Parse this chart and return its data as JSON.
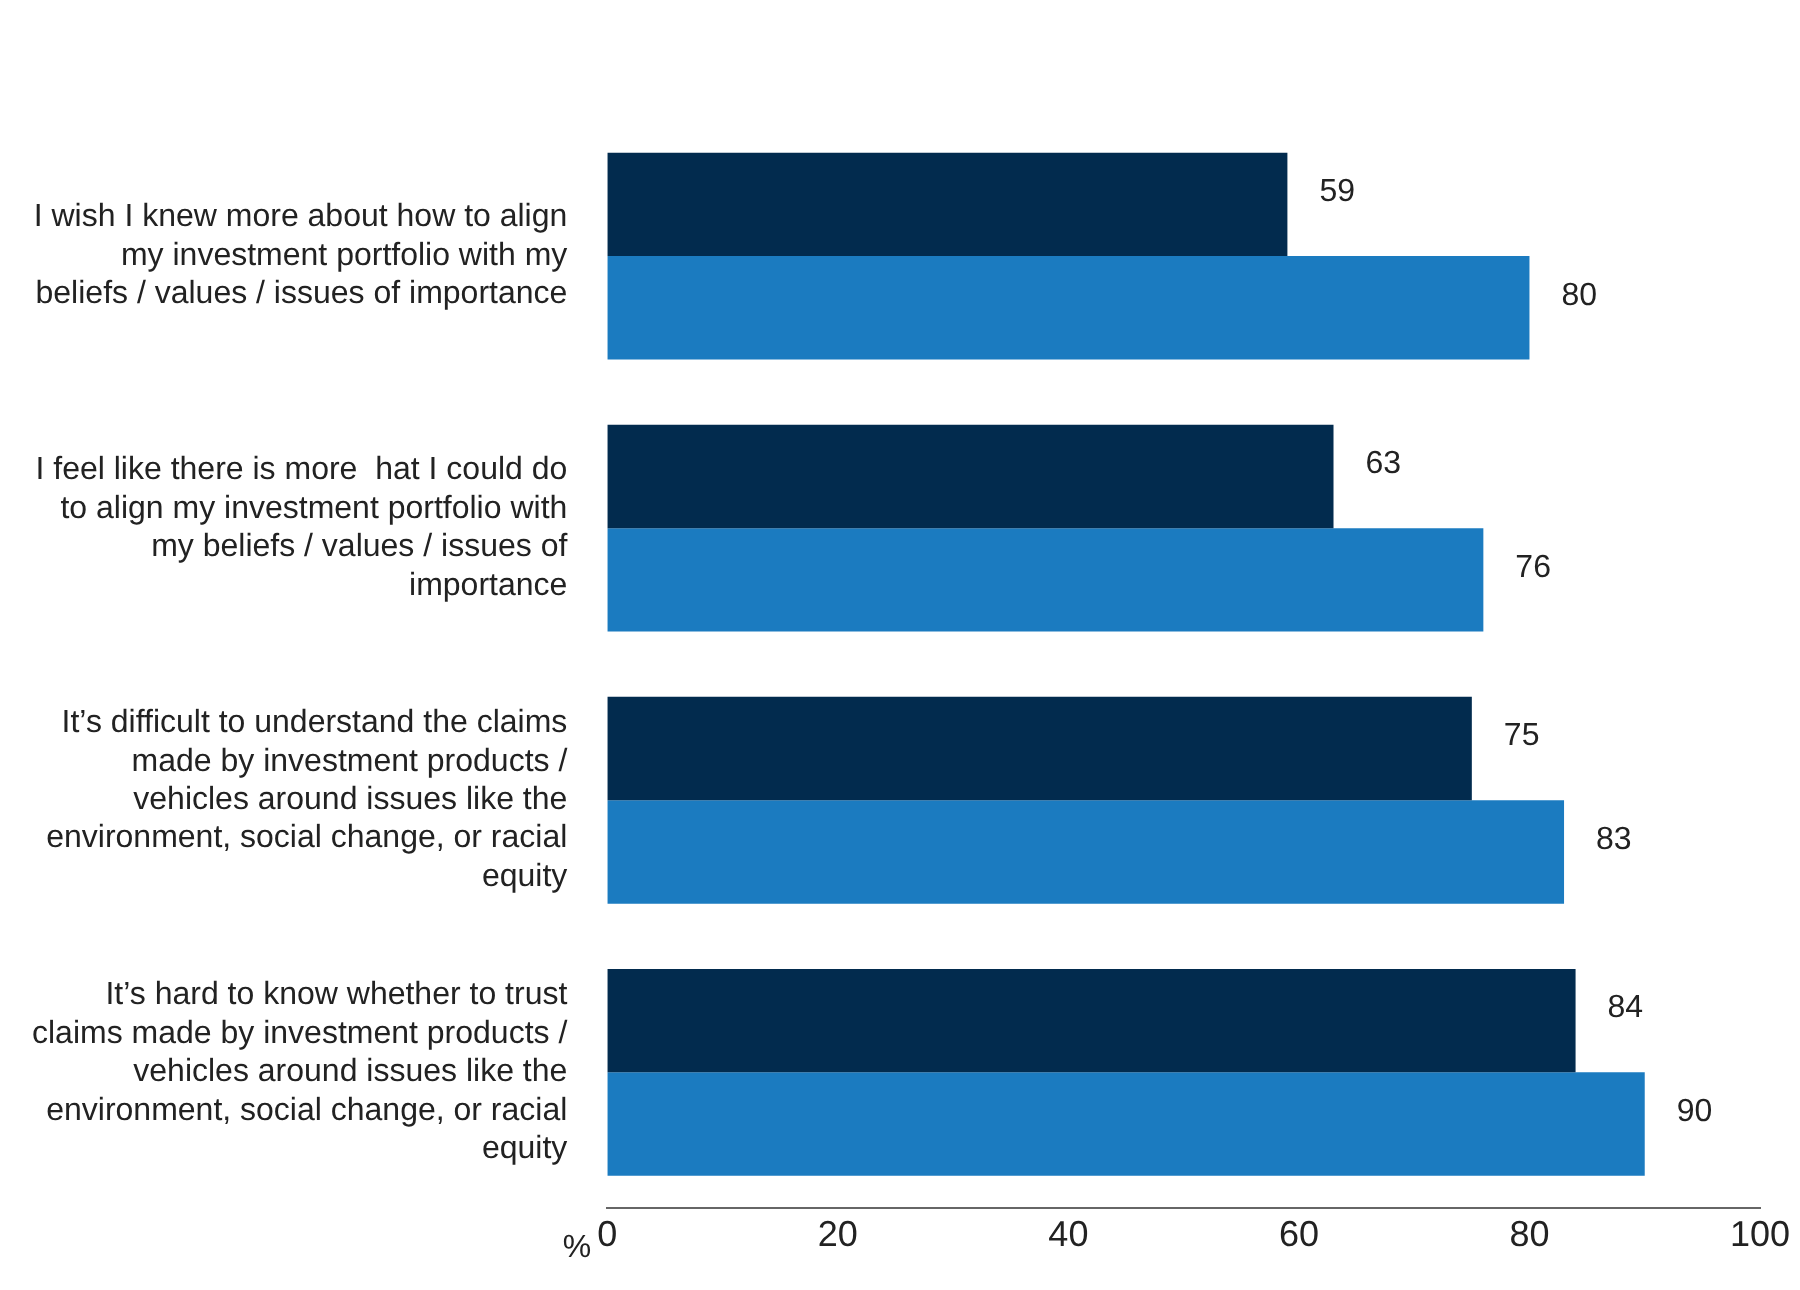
{
  "chart_data": {
    "type": "bar",
    "orientation": "horizontal",
    "xlabel": "%",
    "categories": [
      "I wish I knew more about how to align my investment portfolio with my beliefs / values / issues of importance",
      "I feel like there is more  hat I could do to align my investment portfolio with my beliefs / values / issues of importance",
      "It’s difficult to understand the claims made by investment products / vehicles around issues like the environment, social change, or racial equity",
      "It’s hard to know whether to trust claims made by investment products / vehicles around issues like the environment, social change, or racial equity"
    ],
    "series": [
      {
        "color": "#022b4e",
        "values": [
          59,
          63,
          75,
          84
        ]
      },
      {
        "color": "#1b7bc0",
        "values": [
          80,
          76,
          83,
          90
        ]
      }
    ],
    "xlim": [
      0,
      100
    ],
    "xticks": [
      0,
      20,
      40,
      60,
      80,
      100
    ],
    "grid": false,
    "legend": false,
    "data_labels": true
  }
}
